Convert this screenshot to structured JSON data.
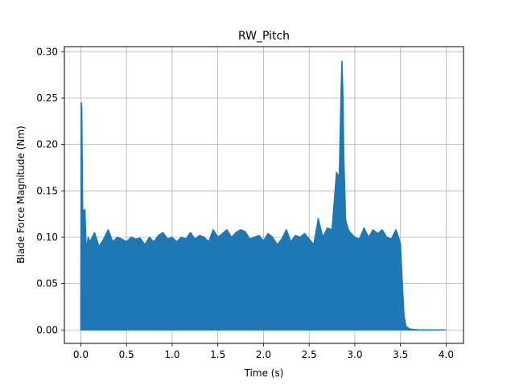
{
  "chart_data": {
    "type": "line",
    "title": "RW_Pitch",
    "xlabel": "Time (s)",
    "ylabel": "Blade Force Magnitude (Nm)",
    "xlim": [
      -0.18,
      4.19
    ],
    "ylim": [
      -0.0145,
      0.3055
    ],
    "grid": true,
    "x_ticks": [
      0.0,
      0.5,
      1.0,
      1.5,
      2.0,
      2.5,
      3.0,
      3.5,
      4.0
    ],
    "x_tick_labels": [
      "0.0",
      "0.5",
      "1.0",
      "1.5",
      "2.0",
      "2.5",
      "3.0",
      "3.5",
      "4.0"
    ],
    "y_ticks": [
      0.0,
      0.05,
      0.1,
      0.15,
      0.2,
      0.25,
      0.3
    ],
    "y_tick_labels": [
      "0.00",
      "0.05",
      "0.10",
      "0.15",
      "0.20",
      "0.25",
      "0.30"
    ],
    "series_color": "#1f77b4",
    "series": [
      {
        "name": "",
        "envelope": {
          "x": [
            0.0,
            0.005,
            0.01,
            0.02,
            0.03,
            0.045,
            0.06,
            0.08,
            0.1,
            0.15,
            0.2,
            0.25,
            0.3,
            0.35,
            0.4,
            0.45,
            0.5,
            0.55,
            0.6,
            0.65,
            0.7,
            0.75,
            0.8,
            0.85,
            0.9,
            0.95,
            1.0,
            1.05,
            1.1,
            1.15,
            1.2,
            1.25,
            1.3,
            1.35,
            1.4,
            1.45,
            1.5,
            1.55,
            1.6,
            1.65,
            1.7,
            1.75,
            1.8,
            1.85,
            1.9,
            1.95,
            2.0,
            2.05,
            2.1,
            2.15,
            2.2,
            2.25,
            2.3,
            2.35,
            2.4,
            2.45,
            2.5,
            2.55,
            2.6,
            2.65,
            2.7,
            2.75,
            2.8,
            2.83,
            2.85,
            2.86,
            2.87,
            2.88,
            2.9,
            2.93,
            2.95,
            3.0,
            3.05,
            3.1,
            3.15,
            3.2,
            3.25,
            3.3,
            3.35,
            3.4,
            3.45,
            3.48,
            3.5,
            3.52,
            3.54,
            3.56,
            3.6,
            3.7,
            3.8,
            3.9,
            3.99
          ],
          "y_max": [
            0.03,
            0.245,
            0.24,
            0.13,
            0.128,
            0.13,
            0.085,
            0.1,
            0.095,
            0.105,
            0.09,
            0.098,
            0.108,
            0.095,
            0.1,
            0.098,
            0.095,
            0.1,
            0.098,
            0.099,
            0.092,
            0.1,
            0.095,
            0.102,
            0.105,
            0.098,
            0.1,
            0.095,
            0.1,
            0.098,
            0.105,
            0.098,
            0.102,
            0.1,
            0.095,
            0.108,
            0.1,
            0.104,
            0.108,
            0.1,
            0.105,
            0.108,
            0.106,
            0.098,
            0.1,
            0.102,
            0.096,
            0.104,
            0.1,
            0.092,
            0.098,
            0.108,
            0.095,
            0.102,
            0.1,
            0.104,
            0.098,
            0.092,
            0.12,
            0.1,
            0.11,
            0.108,
            0.17,
            0.165,
            0.26,
            0.29,
            0.252,
            0.185,
            0.118,
            0.108,
            0.105,
            0.1,
            0.098,
            0.11,
            0.1,
            0.108,
            0.104,
            0.108,
            0.1,
            0.098,
            0.108,
            0.1,
            0.092,
            0.05,
            0.015,
            0.004,
            0.001,
            0.0,
            0.0,
            0.0,
            0.0
          ],
          "y_min": [
            0.0,
            0.0,
            0.0,
            0.0,
            0.0,
            0.0,
            0.0,
            0.0,
            0.0,
            0.0,
            0.0,
            0.0,
            0.0,
            0.0,
            0.0,
            0.0,
            0.0,
            0.0,
            0.0,
            0.0,
            0.0,
            0.0,
            0.0,
            0.0,
            0.0,
            0.0,
            0.0,
            0.0,
            0.0,
            0.0,
            0.0,
            0.0,
            0.0,
            0.0,
            0.0,
            0.0,
            0.0,
            0.0,
            0.0,
            0.0,
            0.0,
            0.0,
            0.0,
            0.0,
            0.0,
            0.0,
            0.0,
            0.0,
            0.0,
            0.0,
            0.0,
            0.0,
            0.0,
            0.0,
            0.0,
            0.0,
            0.0,
            0.0,
            0.0,
            0.0,
            0.0,
            0.0,
            0.0,
            0.0,
            0.0,
            0.0,
            0.0,
            0.0,
            0.0,
            0.0,
            0.0,
            0.0,
            0.0,
            0.0,
            0.0,
            0.0,
            0.0,
            0.0,
            0.0,
            0.0,
            0.0,
            0.0,
            0.0,
            0.0,
            0.0,
            0.0,
            0.0,
            0.0,
            0.0,
            0.0,
            0.0
          ]
        }
      }
    ]
  }
}
